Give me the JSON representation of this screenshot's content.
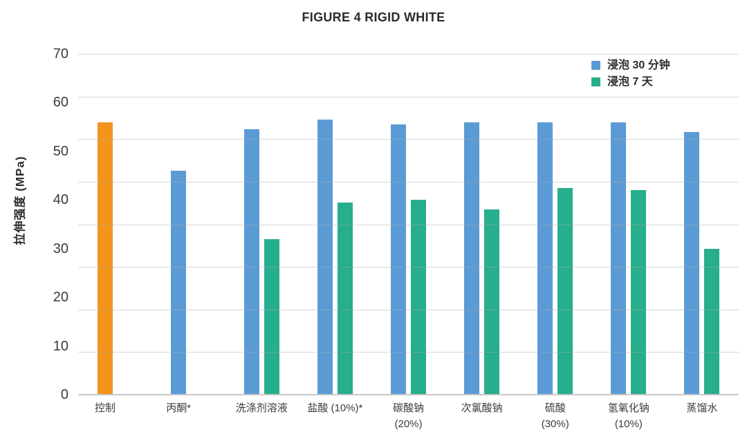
{
  "chart_data": {
    "type": "bar",
    "title": "FIGURE 4 RIGID WHITE",
    "ylabel": "拉伸强度 (MPa)",
    "xlabel": "",
    "ylim": [
      0,
      70
    ],
    "yticks": [
      "70",
      "60",
      "50",
      "40",
      "30",
      "20",
      "10",
      "0"
    ],
    "gridlines": 9,
    "grid": true,
    "legend_position": "top-right",
    "categories": [
      "控制",
      "丙酮*",
      "洗涤剂溶液",
      "盐酸 (10%)*",
      "碳酸钠\n(20%)",
      "次氯酸钠",
      "硫酸\n(30%)",
      "氢氧化钠\n(10%)",
      "蒸馏水"
    ],
    "series": [
      {
        "name": "浸泡 30 分钟",
        "color": "#5B9BD5",
        "values": [
          56,
          46,
          54.5,
          56.5,
          55.5,
          56,
          56,
          56,
          54
        ]
      },
      {
        "name": "浸泡 7 天",
        "color": "#27AE8C",
        "values": [
          null,
          null,
          32,
          39.5,
          40,
          38,
          42.5,
          42,
          30
        ]
      }
    ],
    "point_color_overrides": [
      {
        "series": 0,
        "index": 0,
        "color": "#F3941E",
        "meaning": "control-bar"
      }
    ]
  },
  "colors": {
    "bar_blue": "#5B9BD5",
    "bar_green": "#27AE8C",
    "bar_orange": "#F3941E",
    "gridline": "#D9D9D9",
    "axis_line": "#C8C8C8",
    "title_text": "#2B2B2B",
    "tick_text": "#3A3A3A"
  }
}
